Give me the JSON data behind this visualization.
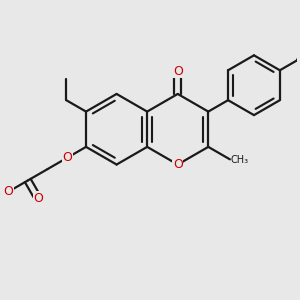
{
  "bg_color": "#e8e8e8",
  "bond_color": "#1a1a1a",
  "oxygen_color": "#cc0000",
  "lw": 1.6,
  "figsize": [
    3.0,
    3.0
  ],
  "dpi": 100,
  "xlim": [
    -3.5,
    3.5
  ],
  "ylim": [
    -3.5,
    3.0
  ]
}
